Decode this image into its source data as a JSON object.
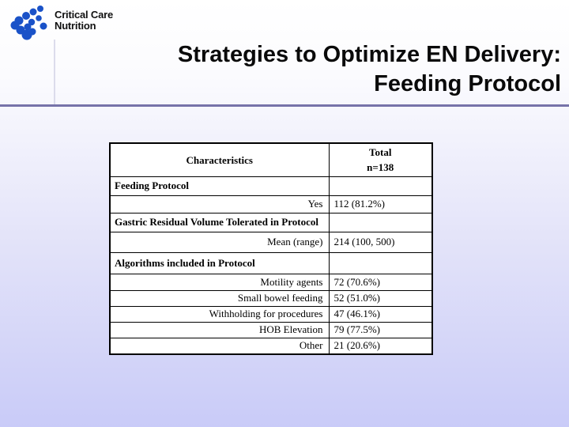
{
  "logo": {
    "line1": "Critical Care",
    "line2": "Nutrition",
    "icon_color": "#1a52c8"
  },
  "title": {
    "line1": "Strategies to Optimize EN Delivery:",
    "line2": "Feeding Protocol"
  },
  "colors": {
    "divider": "#7673a9",
    "background_bottom": "#c9cbf8",
    "title_text": "#0a0a0a"
  },
  "table": {
    "header": {
      "col1": "Characteristics",
      "col2_line1": "Total",
      "col2_line2": "n=138"
    },
    "rows": [
      {
        "type": "section",
        "label": "Feeding Protocol",
        "value": ""
      },
      {
        "type": "data",
        "label": "Yes",
        "value": "112 (81.2%)"
      },
      {
        "type": "section",
        "label": "Gastric Residual Volume Tolerated in Protocol",
        "value": ""
      },
      {
        "type": "data",
        "label": "Mean (range)",
        "value": "214 (100, 500)"
      },
      {
        "type": "section",
        "label": "Algorithms included in Protocol",
        "value": ""
      },
      {
        "type": "data",
        "label": "Motility agents",
        "value": "72 (70.6%)"
      },
      {
        "type": "data",
        "label": "Small bowel feeding",
        "value": "52 (51.0%)"
      },
      {
        "type": "data",
        "label": "Withholding for procedures",
        "value": "47 (46.1%)"
      },
      {
        "type": "data",
        "label": "HOB Elevation",
        "value": "79 (77.5%)"
      },
      {
        "type": "data",
        "label": "Other",
        "value": "21 (20.6%)"
      }
    ]
  }
}
